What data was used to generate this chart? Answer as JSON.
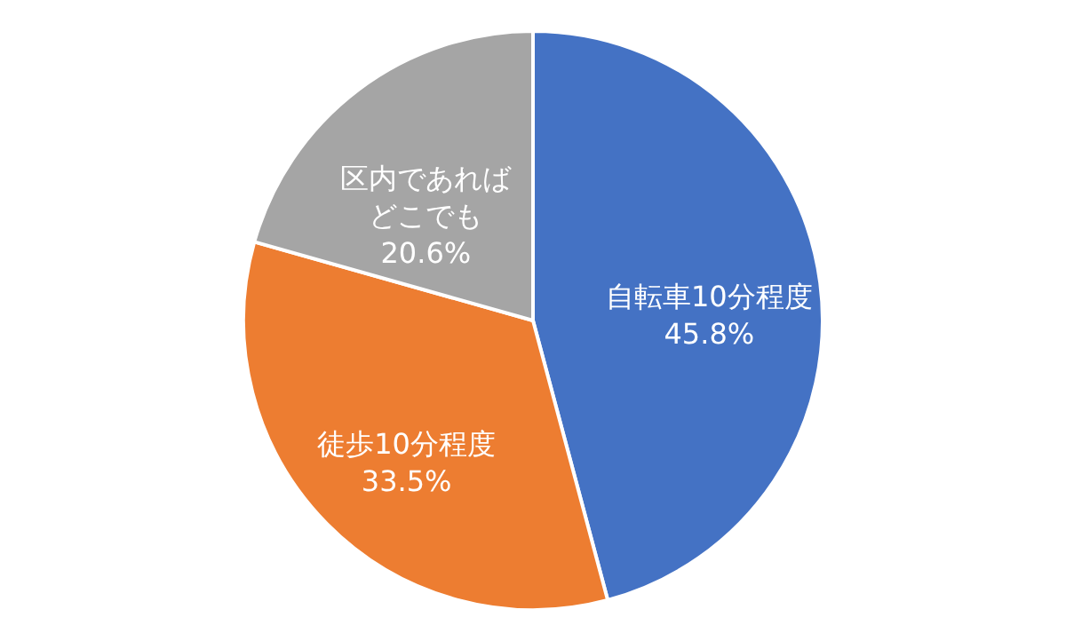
{
  "chart_data": {
    "type": "pie",
    "categories": [
      "自転車10分程度",
      "徒歩10分程度",
      "区内であればどこでも"
    ],
    "values": [
      45.8,
      33.5,
      20.6
    ],
    "colors": [
      "#4472c4",
      "#ed7d31",
      "#a5a5a5"
    ],
    "value_labels": [
      "45.8%",
      "33.5%",
      "20.6%"
    ],
    "legend": false
  }
}
